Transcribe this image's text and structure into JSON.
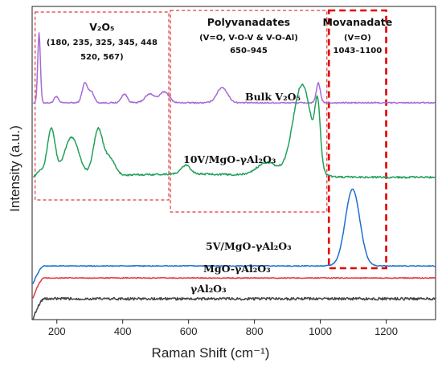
{
  "chart_data": {
    "type": "line",
    "xlabel": "Raman Shift (cm⁻¹)",
    "ylabel": "Intensity (a.u.)",
    "xlim": [
      125,
      1350
    ],
    "x_ticks": [
      "200",
      "400",
      "600",
      "800",
      "1000",
      "1200"
    ],
    "y_ticks_shown": false,
    "grid": false,
    "legend": "none (series labelled inline)",
    "colors": {
      "Bulk V2O5": "#a66ad8",
      "10V/MgO-γAl2O3": "#22a05a",
      "5V/MgO-γAl2O3": "#1f6fce",
      "MgO-γAl2O3": "#e0393e",
      "γAl2O3": "#444444",
      "box_thin": "#e0393e",
      "box_thick": "#e00000"
    },
    "series": [
      {
        "name": "Bulk V₂O₅",
        "baseline": 9.0,
        "peaks": [
          [
            146,
            3.2,
            4
          ],
          [
            198,
            0.3,
            6
          ],
          [
            285,
            0.9,
            8
          ],
          [
            305,
            0.5,
            8
          ],
          [
            405,
            0.4,
            9
          ],
          [
            483,
            0.4,
            15
          ],
          [
            527,
            0.5,
            14
          ],
          [
            702,
            0.7,
            16
          ],
          [
            994,
            0.9,
            6
          ]
        ],
        "noise": 0.03
      },
      {
        "name": "10V/MgO-γAl₂O₃",
        "baseline": 5.6,
        "peaks": [
          [
            150,
            0.3,
            10
          ],
          [
            183,
            2.2,
            12
          ],
          [
            245,
            1.8,
            22
          ],
          [
            325,
            2.1,
            14
          ],
          [
            360,
            0.8,
            16
          ],
          [
            592,
            0.4,
            14
          ],
          [
            838,
            0.6,
            30
          ],
          [
            945,
            4.2,
            28
          ],
          [
            992,
            2.6,
            8
          ]
        ],
        "noise": 0.04
      },
      {
        "name": "5V/MgO-γAl₂O₃",
        "baseline": 1.55,
        "peaks": [
          [
            1098,
            3.5,
            22
          ]
        ],
        "noise": 0.02
      },
      {
        "name": "MgO-γAl₂O₃",
        "baseline": 1.0,
        "peaks": [],
        "noise": 0.02
      },
      {
        "name": "γAl₂O₃",
        "baseline": 0.05,
        "peaks": [],
        "noise": 0.06
      }
    ],
    "regions": [
      {
        "title": "V₂O₅",
        "lines": [
          "(180, 235, 325, 345, 448",
          "520, 567)"
        ],
        "range": [
          134,
          540
        ]
      },
      {
        "title": "Polyvanadates",
        "lines": [
          "(V=O, V-O-V & V-O-Al)",
          "650–945"
        ],
        "range": [
          545,
          1020
        ]
      },
      {
        "title": "Movanadate",
        "lines": [
          "(V=O)",
          "1043–1100"
        ],
        "range": [
          1026,
          1200
        ]
      }
    ]
  }
}
